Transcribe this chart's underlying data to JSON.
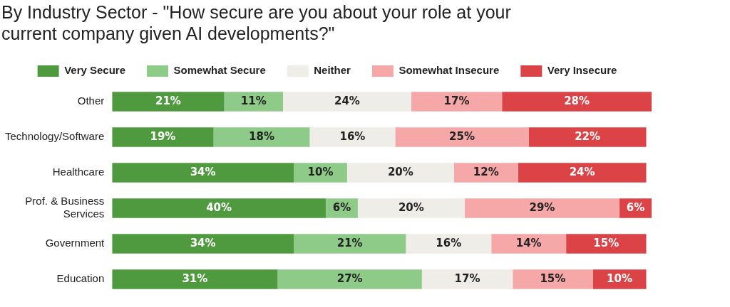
{
  "chart_data": {
    "type": "bar",
    "orientation": "horizontal",
    "stacked": true,
    "title": "By Industry Sector - \"How secure are you about your role at your current company given AI developments?\"",
    "categories": [
      "Other",
      "Technology/Software",
      "Healthcare",
      "Prof. & Business Services",
      "Government",
      "Education"
    ],
    "legend": "top",
    "tick_labels": "y",
    "series": [
      {
        "name": "Very Secure",
        "color": "#4f9a3f",
        "values": [
          21,
          19,
          34,
          40,
          34,
          31
        ],
        "value_labels": [
          "21%",
          "19%",
          "34%",
          "40%",
          "34%",
          "31%"
        ]
      },
      {
        "name": "Somewhat Secure",
        "color": "#8ecb88",
        "values": [
          11,
          18,
          10,
          6,
          21,
          27
        ],
        "value_labels": [
          "11%",
          "18%",
          "10%",
          "6%",
          "21%",
          "27%"
        ]
      },
      {
        "name": "Neither",
        "color": "#efede7",
        "values": [
          24,
          16,
          20,
          20,
          16,
          17
        ],
        "value_labels": [
          "24%",
          "16%",
          "20%",
          "20%",
          "16%",
          "17%"
        ]
      },
      {
        "name": "Somewhat Insecure",
        "color": "#f6a8a8",
        "values": [
          17,
          25,
          12,
          29,
          14,
          15
        ],
        "value_labels": [
          "17%",
          "25%",
          "12%",
          "29%",
          "14%",
          "15%"
        ]
      },
      {
        "name": "Very Insecure",
        "color": "#dc4347",
        "values": [
          28,
          22,
          24,
          6,
          15,
          10
        ],
        "value_labels": [
          "28%",
          "22%",
          "24%",
          "6%",
          "15%",
          "10%"
        ]
      }
    ]
  }
}
